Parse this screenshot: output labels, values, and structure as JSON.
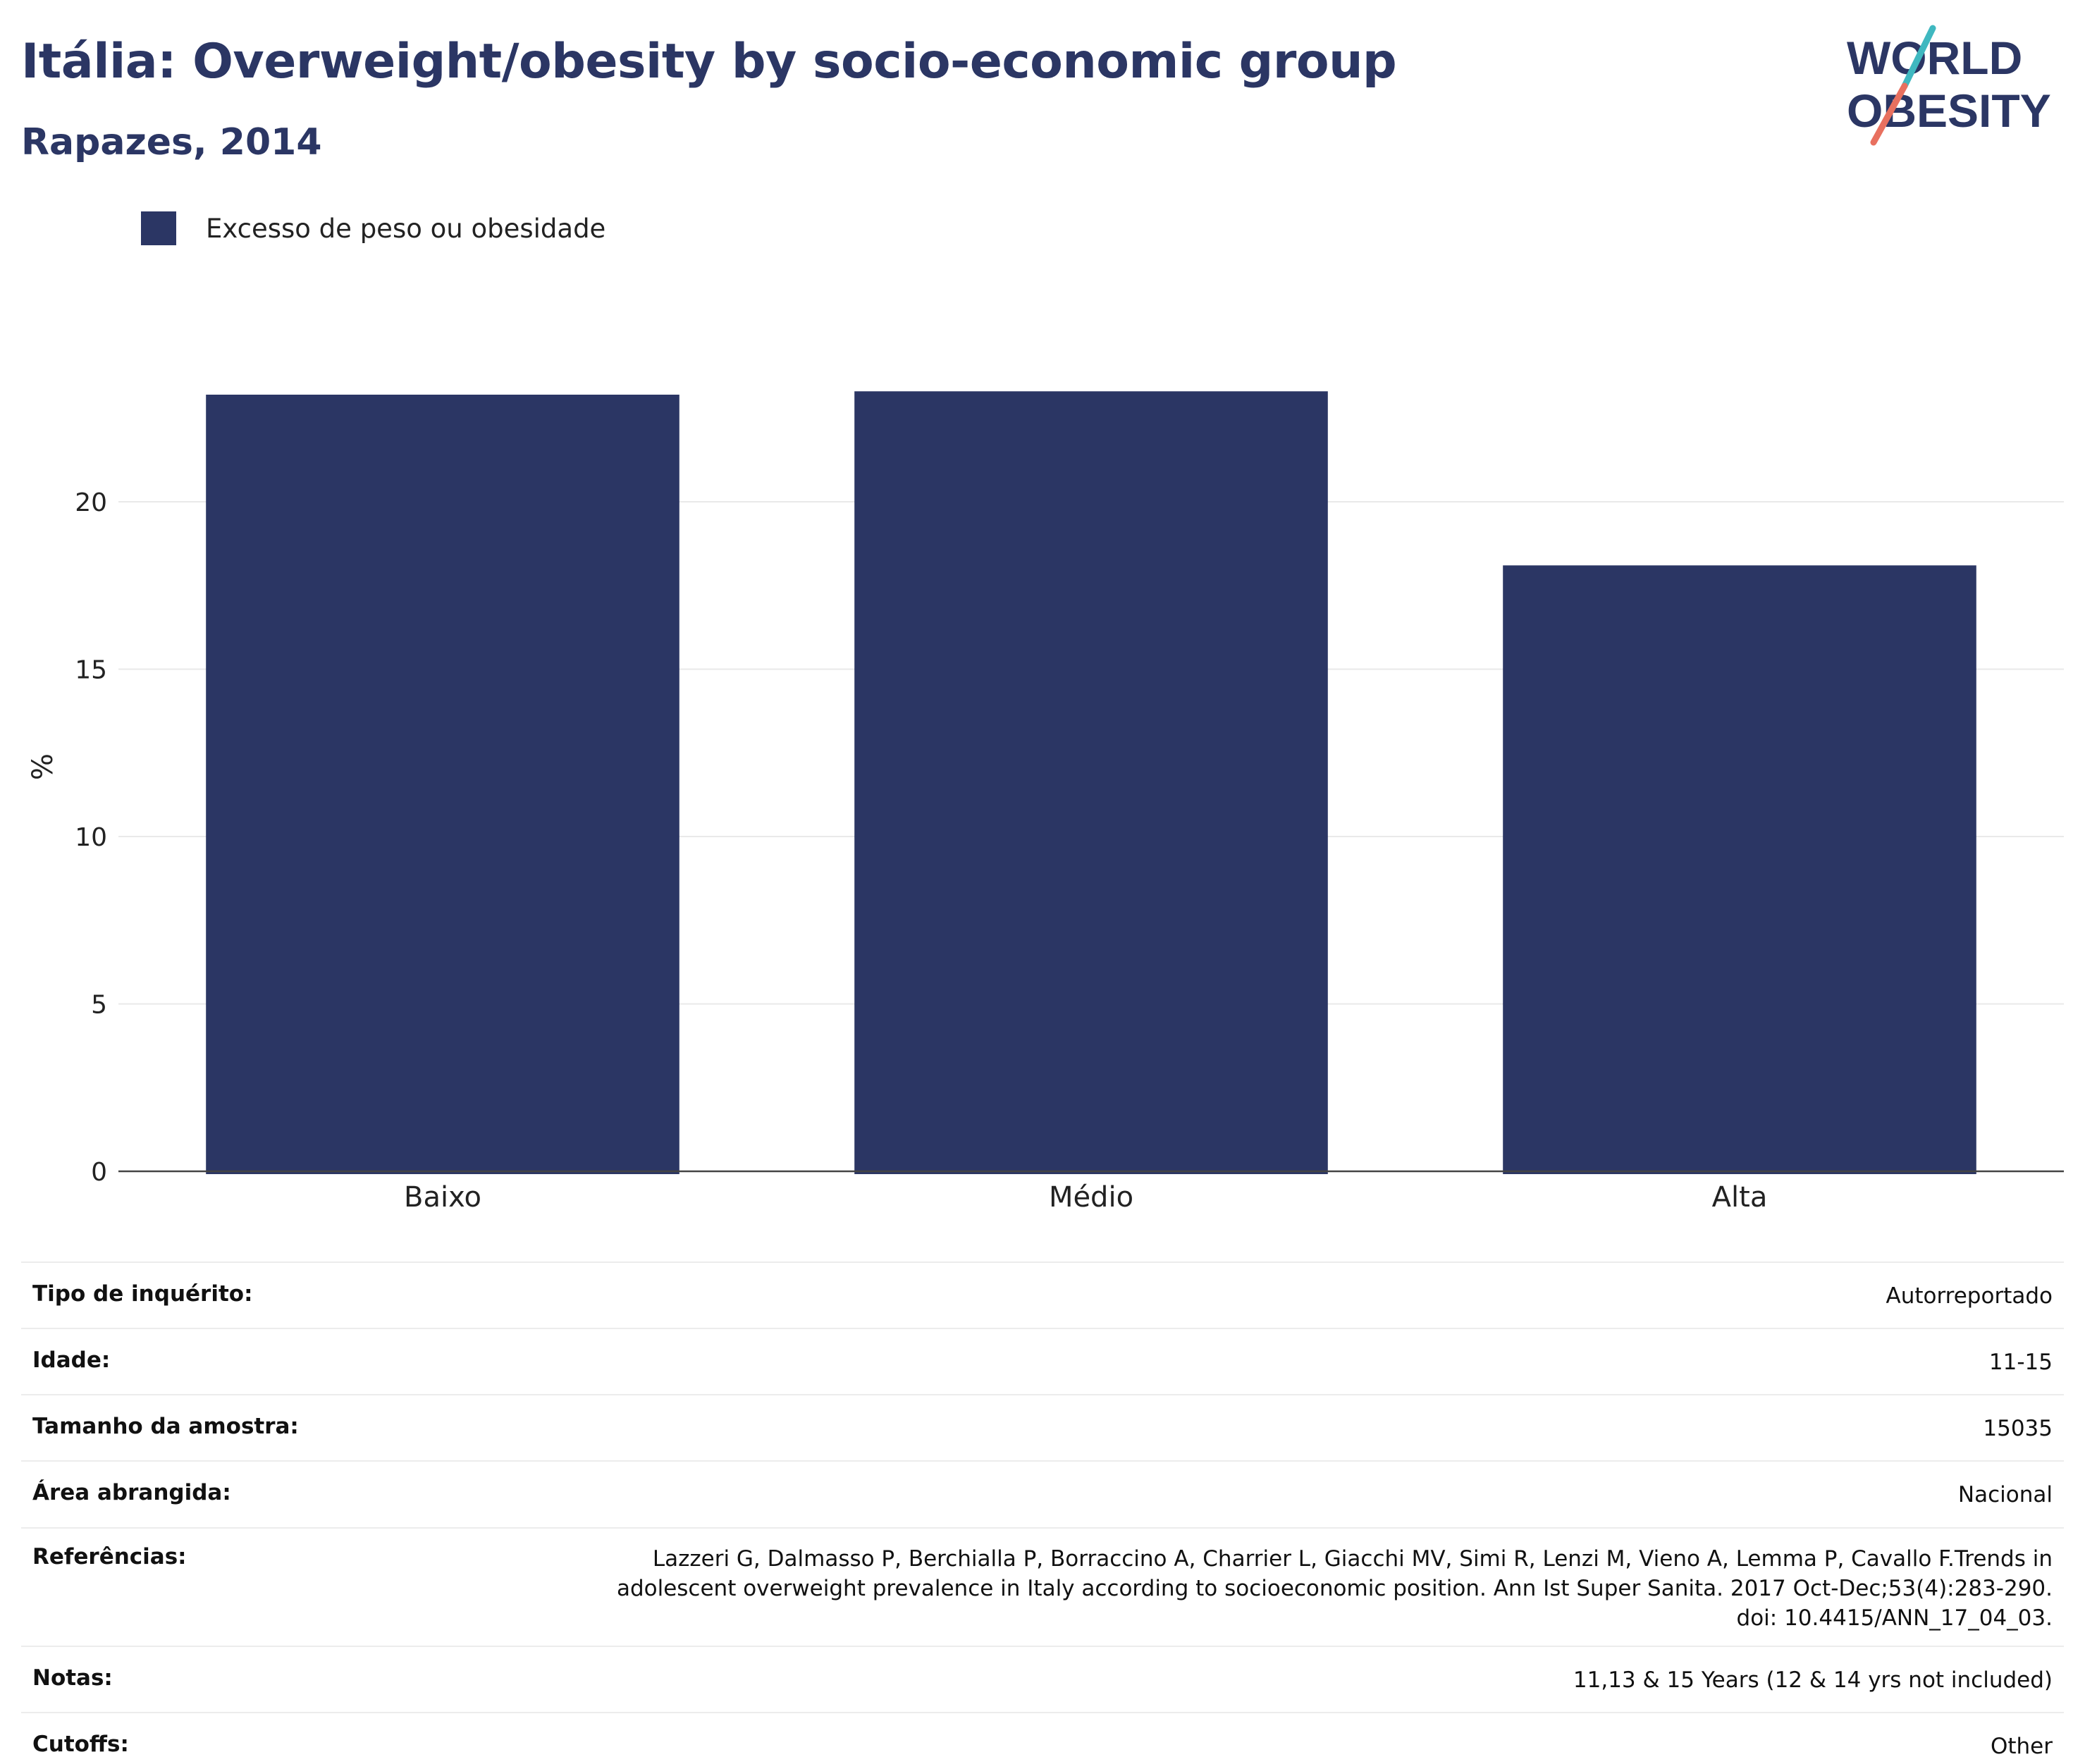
{
  "header": {
    "title": "Itália: Overweight/obesity by socio-economic group",
    "subtitle": "Rapazes, 2014"
  },
  "logo": {
    "line1": "WORLD",
    "line2": "OBESITY",
    "colors": {
      "text": "#2b3664",
      "slash_teal": "#3fb8c0",
      "slash_coral": "#e8705f"
    }
  },
  "chart_data": {
    "type": "bar",
    "categories": [
      "Baixo",
      "Médio",
      "Alta"
    ],
    "series": [
      {
        "name": "Excesso de peso ou obesidade",
        "values": [
          23.2,
          23.3,
          18.1
        ],
        "color": "#2b3664"
      }
    ],
    "xlabel": "",
    "ylabel": "%",
    "ylim": [
      0,
      25
    ],
    "yticks": [
      0,
      5,
      10,
      15,
      20
    ],
    "grid": true,
    "legend": "top-left"
  },
  "meta": [
    {
      "label": "Tipo de inquérito:",
      "value": "Autorreportado"
    },
    {
      "label": "Idade:",
      "value": "11-15"
    },
    {
      "label": "Tamanho da amostra:",
      "value": "15035"
    },
    {
      "label": "Área abrangida:",
      "value": "Nacional"
    },
    {
      "label": "Referências:",
      "value": "Lazzeri G, Dalmasso P, Berchialla P, Borraccino A, Charrier L, Giacchi MV, Simi R, Lenzi M, Vieno A, Lemma P, Cavallo F.Trends in adolescent overweight prevalence in Italy according to socioeconomic position. Ann Ist Super Sanita. 2017 Oct-Dec;53(4):283-290. doi: 10.4415/ANN_17_04_03."
    },
    {
      "label": "Notas:",
      "value": "11,13 & 15 Years (12 & 14 yrs not included)"
    },
    {
      "label": "Cutoffs:",
      "value": "Other"
    }
  ]
}
